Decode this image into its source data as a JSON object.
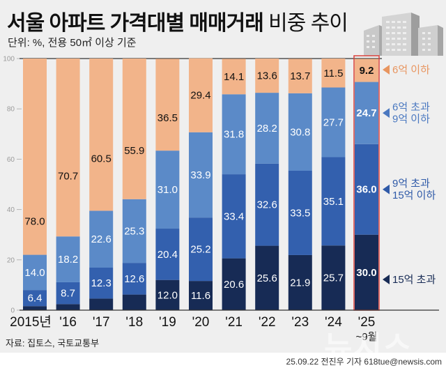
{
  "header": {
    "title_bold": "서울 아파트 가격대별 매매거래",
    "title_light": "비중 추이",
    "subtitle": "단위: %, 전용 50㎡ 이상 기준"
  },
  "footer": {
    "source": "자료: 집토스, 국토교통부",
    "credit": "25.09.22 전진우 기자 618tue@newsis.com",
    "watermark": "뉴시스"
  },
  "colors": {
    "background": "#efefef",
    "under_6": "#f2b48a",
    "6_to_9": "#5b8ac8",
    "9_to_15": "#3360ae",
    "over_15": "#172b55",
    "highlight_border": "#d9403a",
    "legend_under_6": "#e8955f",
    "legend_6_to_9": "#4a78c0",
    "legend_9_to_15": "#2f5aa8",
    "legend_over_15": "#172b55"
  },
  "chart_data": {
    "type": "bar",
    "stacked": true,
    "title": "서울 아파트 가격대별 매매거래 비중 추이",
    "subtitle": "단위: %, 전용 50㎡ 이상 기준",
    "xlabel": "",
    "ylabel": "%",
    "ylim": [
      0,
      100
    ],
    "yticks": [
      "0",
      "20",
      "40",
      "60",
      "80",
      "100"
    ],
    "grid": false,
    "categories": [
      "2015년",
      "'16",
      "'17",
      "'18",
      "'19",
      "'20",
      "'21",
      "'22",
      "'23",
      "'24",
      "'25"
    ],
    "category_sublabels": [
      "",
      "",
      "",
      "",
      "",
      "",
      "",
      "",
      "",
      "",
      "~9월"
    ],
    "highlight_category": "'25",
    "series": [
      {
        "name": "15억 초과",
        "key": "over_15",
        "values": [
          1.6,
          2.4,
          4.6,
          6.2,
          12.0,
          11.6,
          20.6,
          25.6,
          21.9,
          25.7,
          30.0
        ],
        "labels": [
          "",
          "",
          "",
          "",
          "12.0",
          "11.6",
          "20.6",
          "25.6",
          "21.9",
          "25.7",
          "30.0"
        ]
      },
      {
        "name": "9억 초과 15억 이하",
        "key": "9_to_15",
        "values": [
          6.4,
          8.7,
          12.3,
          12.6,
          20.4,
          25.2,
          33.4,
          32.6,
          33.5,
          35.1,
          36.0
        ],
        "labels": [
          "6.4",
          "8.7",
          "12.3",
          "12.6",
          "20.4",
          "25.2",
          "33.4",
          "32.6",
          "33.5",
          "35.1",
          "36.0"
        ]
      },
      {
        "name": "6억 초과 9억 이하",
        "key": "6_to_9",
        "values": [
          14.0,
          18.2,
          22.6,
          25.3,
          31.0,
          33.9,
          31.8,
          28.2,
          30.8,
          27.7,
          24.7
        ],
        "labels": [
          "14.0",
          "18.2",
          "22.6",
          "25.3",
          "31.0",
          "33.9",
          "31.8",
          "28.2",
          "30.8",
          "27.7",
          "24.7"
        ]
      },
      {
        "name": "6억 이하",
        "key": "under_6",
        "values": [
          78.0,
          70.7,
          60.5,
          55.9,
          36.5,
          29.4,
          14.1,
          13.6,
          13.7,
          11.5,
          9.2
        ],
        "labels": [
          "78.0",
          "70.7",
          "60.5",
          "55.9",
          "36.5",
          "29.4",
          "14.1",
          "13.6",
          "13.7",
          "11.5",
          "9.2"
        ]
      }
    ],
    "legend": [
      {
        "key": "under_6",
        "lines": [
          "6억 이하"
        ]
      },
      {
        "key": "6_to_9",
        "lines": [
          "6억 초과",
          "9억 이하"
        ]
      },
      {
        "key": "9_to_15",
        "lines": [
          "9억 초과",
          "15억 이하"
        ]
      },
      {
        "key": "over_15",
        "lines": [
          "15억 초과"
        ]
      }
    ],
    "legend_position": "right"
  }
}
